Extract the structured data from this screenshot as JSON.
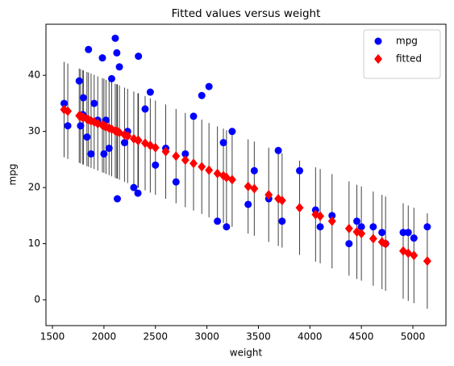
{
  "chart_data": {
    "type": "scatter",
    "title": "Fitted values versus weight",
    "x_label": "weight",
    "y_label": "mpg",
    "x": [
      1613,
      1649,
      1760,
      1773,
      1795,
      1800,
      1835,
      1850,
      1875,
      1905,
      1940,
      1985,
      2000,
      2020,
      2050,
      2075,
      2110,
      2125,
      2130,
      2150,
      2200,
      2230,
      2290,
      2330,
      2335,
      2400,
      2450,
      2500,
      2600,
      2700,
      2790,
      2870,
      2950,
      3020,
      3102,
      3160,
      3190,
      3245,
      3400,
      3460,
      3600,
      3693,
      3730,
      3900,
      4055,
      4100,
      4215,
      4380,
      4456,
      4500,
      4615,
      4700,
      4735,
      4906,
      4955,
      5010,
      5140
    ],
    "series": [
      {
        "name": "mpg",
        "color": "#0000ff",
        "marker": "circle",
        "values": [
          35,
          31,
          39,
          31,
          33,
          36,
          29,
          44.6,
          26,
          35,
          32,
          43.1,
          26,
          32,
          27,
          39.4,
          46.6,
          44,
          18,
          41.5,
          28,
          30,
          20,
          19,
          43.4,
          34,
          37,
          24,
          27,
          21,
          26,
          32.7,
          36.4,
          38,
          14,
          28,
          13,
          30,
          17,
          23,
          18,
          26.6,
          14,
          23,
          16,
          13,
          15,
          10,
          14,
          13,
          13,
          12,
          10,
          12,
          12,
          11,
          13
        ]
      },
      {
        "name": "fitted",
        "color": "#ff0000",
        "marker": "diamond",
        "error_color": "#000000",
        "values": [
          33.9,
          33.6,
          32.8,
          32.7,
          32.5,
          32.5,
          32.2,
          32.1,
          31.9,
          31.7,
          31.4,
          31.1,
          31.0,
          30.8,
          30.6,
          30.4,
          30.1,
          30.0,
          30.0,
          29.8,
          29.4,
          29.2,
          28.7,
          28.4,
          28.4,
          27.9,
          27.5,
          27.1,
          26.4,
          25.6,
          24.9,
          24.3,
          23.7,
          23.1,
          22.5,
          22.1,
          21.8,
          21.4,
          20.2,
          19.8,
          18.7,
          18.0,
          17.7,
          16.4,
          15.2,
          14.9,
          14.0,
          12.7,
          12.1,
          11.8,
          10.9,
          10.3,
          10.0,
          8.7,
          8.3,
          7.9,
          6.9
        ],
        "errors": [
          8.5,
          8.5,
          8.4,
          8.4,
          8.4,
          8.4,
          8.4,
          8.4,
          8.4,
          8.4,
          8.4,
          8.4,
          8.4,
          8.4,
          8.4,
          8.4,
          8.4,
          8.4,
          8.4,
          8.4,
          8.4,
          8.4,
          8.4,
          8.4,
          8.4,
          8.4,
          8.4,
          8.4,
          8.4,
          8.4,
          8.4,
          8.4,
          8.4,
          8.4,
          8.4,
          8.4,
          8.4,
          8.4,
          8.4,
          8.4,
          8.4,
          8.4,
          8.4,
          8.4,
          8.4,
          8.4,
          8.4,
          8.4,
          8.4,
          8.4,
          8.4,
          8.4,
          8.4,
          8.5,
          8.5,
          8.5,
          8.5
        ]
      }
    ],
    "xlim": [
      1437,
      5321
    ],
    "ylim": [
      -4.6,
      49.1
    ],
    "xticks": [
      1500,
      2000,
      2500,
      3000,
      3500,
      4000,
      4500,
      5000
    ],
    "yticks": [
      0,
      10,
      20,
      30,
      40
    ],
    "legend": "upper right",
    "grid": false
  }
}
